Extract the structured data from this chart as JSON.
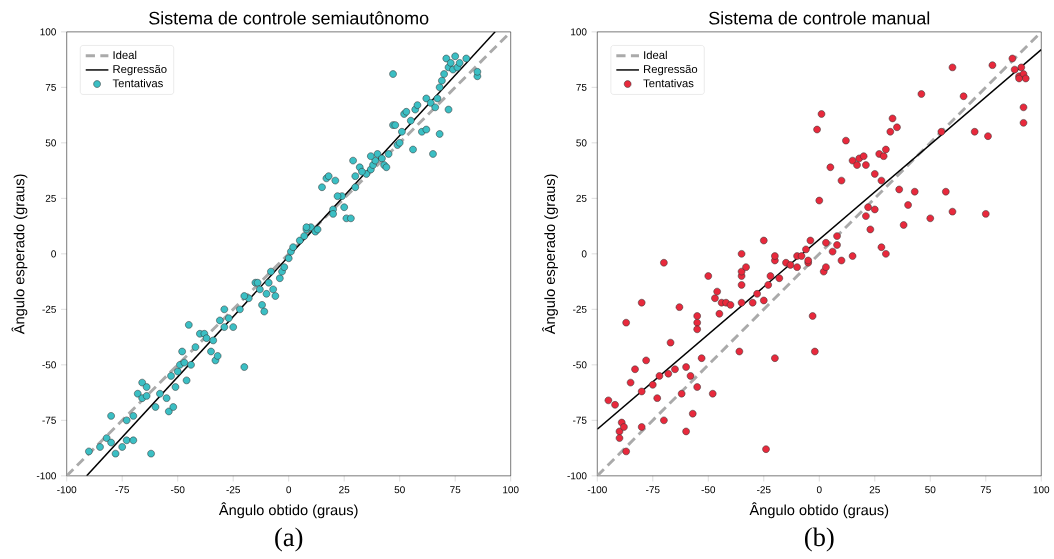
{
  "chart_data": [
    {
      "type": "scatter",
      "title": "Sistema de controle semiautônomo",
      "xlabel": "Ângulo obtido (graus)",
      "ylabel": "Ângulo esperado (graus)",
      "annotations": [
        "(a)"
      ],
      "legend": "top left",
      "xlim": [
        -100,
        100
      ],
      "ylim": [
        -100,
        100
      ],
      "xticks": [
        -100,
        -75,
        -50,
        -25,
        0,
        25,
        50,
        75,
        100
      ],
      "yticks": [
        -100,
        -75,
        -50,
        -25,
        0,
        25,
        50,
        75,
        100
      ],
      "series": [
        {
          "name": "Ideal",
          "type": "line",
          "color": "#aaaaaa",
          "line_style": "dashed",
          "marker": "none",
          "x": [
            -100,
            100
          ],
          "values": [
            -100,
            100
          ]
        },
        {
          "name": "Regressão",
          "type": "line",
          "color": "#000000",
          "line_style": "solid",
          "marker": "none",
          "x": [
            -91,
            93
          ],
          "values": [
            -100,
            100
          ]
        },
        {
          "name": "Tentativas",
          "color": "#3bbfc4",
          "marker": "circle",
          "x": [
            -90,
            -85,
            -82,
            -80,
            -80,
            -78,
            -75,
            -73,
            -73,
            -70,
            -68,
            -66,
            -66,
            -64,
            -62,
            -60,
            -58,
            -55,
            -54,
            -53,
            -52,
            -51,
            -50,
            -49,
            -48,
            -46,
            -45,
            -44,
            -42,
            -40,
            -38,
            -37,
            -35,
            -34,
            -33,
            -32,
            -31,
            -29,
            -29,
            -27,
            -25,
            -22,
            -20,
            -18,
            -15,
            -14,
            -13,
            -12,
            -11,
            -10,
            -9,
            -8,
            -7,
            -6,
            -4,
            -3,
            -2,
            0,
            1,
            2,
            5,
            7,
            8,
            10,
            12,
            13,
            15,
            17,
            18,
            20,
            21,
            25,
            24,
            22,
            26,
            28,
            29,
            30,
            32,
            35,
            37,
            38,
            39,
            40,
            42,
            43,
            44,
            45,
            47,
            48,
            49,
            50,
            51,
            52,
            53,
            55,
            56,
            57,
            58,
            60,
            62,
            64,
            65,
            66,
            67,
            68,
            69,
            70,
            71,
            72,
            73,
            74,
            75,
            76,
            77,
            80,
            85,
            85,
            47,
            68,
            72,
            62,
            30,
            33,
            37,
            20,
            8,
            -20,
            -47,
            -64,
            -70
          ],
          "values": [
            -89,
            -87,
            -83,
            -73,
            -85,
            -90,
            -87,
            -84,
            -75,
            -73,
            -63,
            -58,
            -65,
            -60,
            -90,
            -69,
            -63,
            -65,
            -71,
            -55,
            -69,
            -60,
            -53,
            -50,
            -44,
            -57,
            -32,
            -50,
            -42,
            -36,
            -36,
            -38,
            -44,
            -39,
            -48,
            -46,
            -30,
            -33,
            -25,
            -29,
            -33,
            -25,
            -51,
            -20,
            -13,
            -13,
            -16,
            -23,
            -26,
            -18,
            -13,
            -8,
            -16,
            -19,
            -11,
            -8,
            -6,
            -2,
            1,
            3,
            6,
            8,
            11,
            12,
            10,
            11,
            30,
            34,
            35,
            20,
            33,
            21,
            26,
            26,
            16,
            16,
            42,
            35,
            39,
            36,
            38,
            40,
            42,
            45,
            43,
            40,
            39,
            45,
            58,
            58,
            49,
            50,
            55,
            63,
            64,
            60,
            47,
            65,
            67,
            55,
            70,
            68,
            45,
            66,
            70,
            75,
            78,
            81,
            88,
            84,
            86,
            83,
            89,
            84,
            86,
            88,
            80,
            82,
            81,
            54,
            65,
            56,
            30,
            37,
            44,
            18,
            12,
            -19,
            -49,
            -64,
            -84
          ]
        }
      ]
    },
    {
      "type": "scatter",
      "title": "Sistema de controle manual",
      "xlabel": "Ângulo obtido (graus)",
      "ylabel": "Ângulo esperado (graus)",
      "annotations": [
        "(b)"
      ],
      "legend": "top left",
      "xlim": [
        -100,
        100
      ],
      "ylim": [
        -100,
        100
      ],
      "xticks": [
        -100,
        -75,
        -50,
        -25,
        0,
        25,
        50,
        75,
        100
      ],
      "yticks": [
        -100,
        -75,
        -50,
        -25,
        0,
        25,
        50,
        75,
        100
      ],
      "series": [
        {
          "name": "Ideal",
          "type": "line",
          "color": "#aaaaaa",
          "line_style": "dashed",
          "marker": "none",
          "x": [
            -100,
            100
          ],
          "values": [
            -100,
            100
          ]
        },
        {
          "name": "Regressão",
          "type": "line",
          "color": "#000000",
          "line_style": "solid",
          "marker": "none",
          "x": [
            -100,
            100
          ],
          "values": [
            -79,
            92
          ]
        },
        {
          "name": "Tentativas",
          "color": "#e8293c",
          "marker": "circle",
          "x": [
            -95,
            -92,
            -90,
            -90,
            -89,
            -88,
            -87,
            -87,
            -85,
            -83,
            -80,
            -80,
            -80,
            -78,
            -75,
            -73,
            -72,
            -70,
            -70,
            -68,
            -67,
            -65,
            -63,
            -62,
            -60,
            -60,
            -58,
            -57,
            -55,
            -55,
            -55,
            -55,
            -53,
            -50,
            -48,
            -47,
            -46,
            -44,
            -42,
            -40,
            -36,
            -35,
            -35,
            -35,
            -35,
            -35,
            -33,
            -30,
            -28,
            -25,
            -24,
            -23,
            -22,
            -20,
            -20,
            -18,
            -15,
            -13,
            -10,
            -8,
            -6,
            -5,
            -4,
            -3,
            -2,
            -1,
            0,
            1,
            2,
            3,
            5,
            6,
            8,
            10,
            10,
            12,
            15,
            17,
            18,
            20,
            21,
            21,
            23,
            22,
            25,
            25,
            27,
            28,
            29,
            30,
            32,
            33,
            35,
            36,
            38,
            40,
            43,
            46,
            50,
            55,
            57,
            60,
            60,
            65,
            70,
            75,
            76,
            78,
            87,
            88,
            90,
            91,
            92,
            93,
            92,
            92,
            90,
            3,
            -20,
            -10,
            15,
            28,
            30,
            -25,
            -5,
            8,
            -45
          ],
          "values": [
            -66,
            -68,
            -80,
            -83,
            -76,
            -78,
            -89,
            -31,
            -58,
            -52,
            -78,
            -62,
            -22,
            -48,
            -59,
            -65,
            -55,
            -4,
            -75,
            -54,
            -40,
            -52,
            -24,
            -63,
            -80,
            -51,
            -55,
            -72,
            -60,
            -31,
            -28,
            -34,
            -47,
            -10,
            -63,
            -20,
            -17,
            -22,
            -22,
            -23,
            -44,
            -10,
            -14,
            -8,
            0,
            -22,
            -6,
            -22,
            -18,
            -21,
            -88,
            -14,
            -10,
            -3,
            -47,
            -11,
            -4,
            -5,
            -1,
            -1,
            2,
            -4,
            6,
            -28,
            -44,
            56,
            24,
            63,
            -8,
            -6,
            39,
            1,
            8,
            -3,
            33,
            51,
            42,
            40,
            43,
            44,
            40,
            17,
            11,
            21,
            36,
            20,
            45,
            33,
            44,
            47,
            55,
            61,
            57,
            29,
            13,
            22,
            28,
            72,
            16,
            55,
            28,
            84,
            19,
            71,
            55,
            18,
            53,
            85,
            88,
            83,
            80,
            84,
            81,
            79,
            66,
            59,
            79,
            5,
            -1,
            -6,
            -1,
            3,
            0,
            6,
            -3,
            4,
            -27
          ]
        }
      ]
    }
  ]
}
